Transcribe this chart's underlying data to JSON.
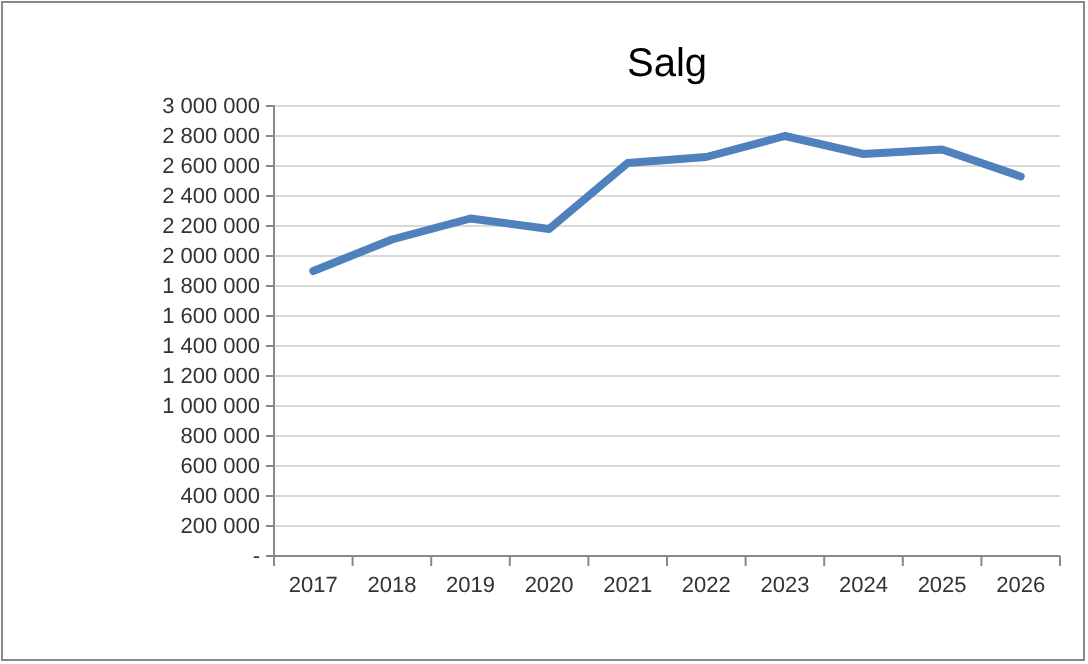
{
  "chart_data": {
    "type": "line",
    "title": "Salg",
    "categories": [
      "2017",
      "2018",
      "2019",
      "2020",
      "2021",
      "2022",
      "2023",
      "2024",
      "2025",
      "2026"
    ],
    "series": [
      {
        "color": "#4f81bd",
        "values": [
          1900000,
          2110000,
          2250000,
          2180000,
          2620000,
          2660000,
          2800000,
          2680000,
          2710000,
          2530000
        ]
      }
    ],
    "ylim": [
      0,
      3000000
    ],
    "yticks": [
      {
        "value": 0,
        "label": "-"
      },
      {
        "value": 200000,
        "label": "200 000"
      },
      {
        "value": 400000,
        "label": "400 000"
      },
      {
        "value": 600000,
        "label": "600 000"
      },
      {
        "value": 800000,
        "label": "800 000"
      },
      {
        "value": 1000000,
        "label": "1 000 000"
      },
      {
        "value": 1200000,
        "label": "1 200 000"
      },
      {
        "value": 1400000,
        "label": "1 400 000"
      },
      {
        "value": 1600000,
        "label": "1 600 000"
      },
      {
        "value": 1800000,
        "label": "1 800 000"
      },
      {
        "value": 2000000,
        "label": "2 000 000"
      },
      {
        "value": 2200000,
        "label": "2 200 000"
      },
      {
        "value": 2400000,
        "label": "2 400 000"
      },
      {
        "value": 2600000,
        "label": "2 600 000"
      },
      {
        "value": 2800000,
        "label": "2 800 000"
      },
      {
        "value": 3000000,
        "label": "3 000 000"
      }
    ],
    "grid": "y",
    "marker": "none",
    "line_style": "solid"
  }
}
